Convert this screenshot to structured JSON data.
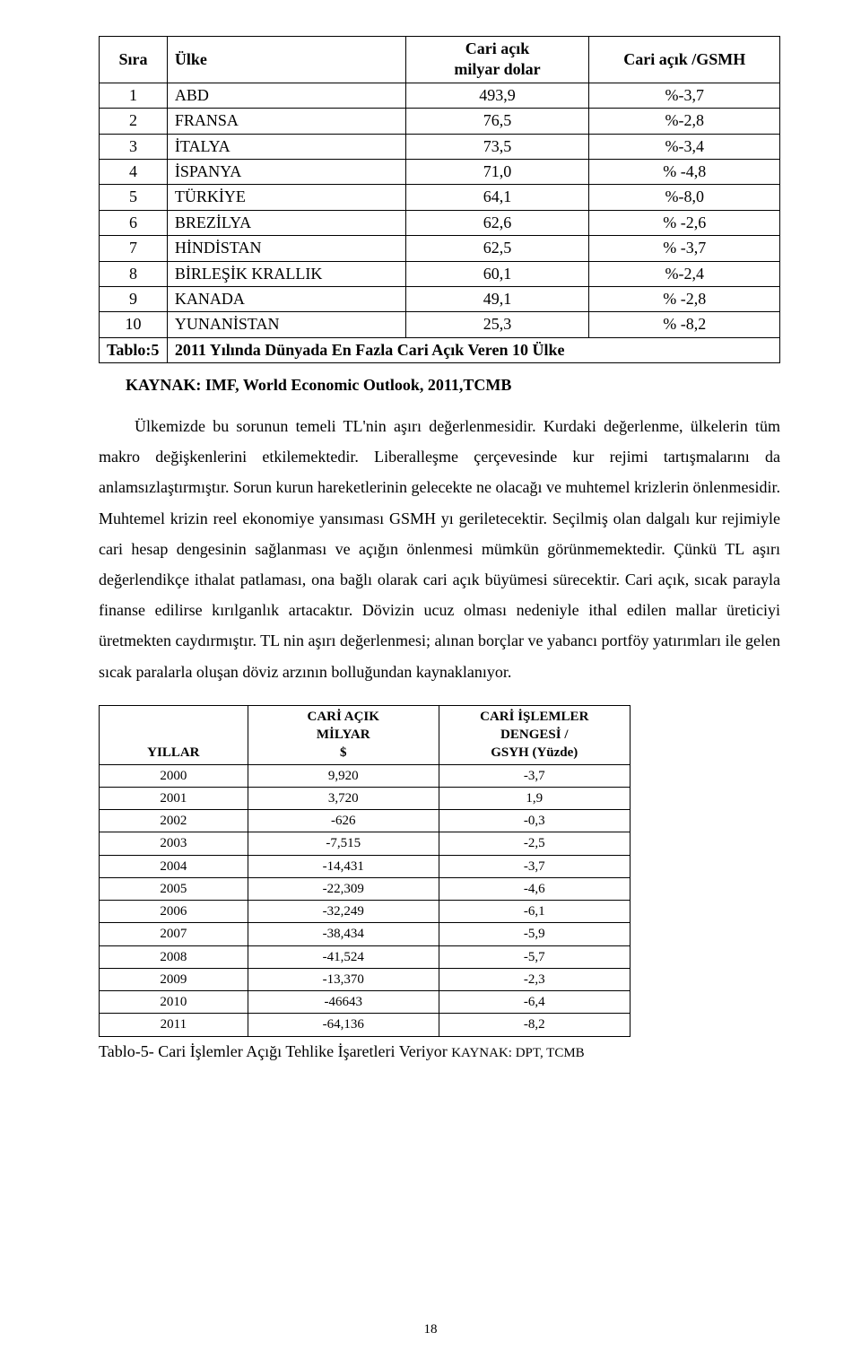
{
  "table1": {
    "headers": {
      "sira": "Sıra",
      "ulke": "Ülke",
      "cari_acik": "Cari açık\nmilyar dolar",
      "cari_gsmh": "Cari açık /GSMH"
    },
    "rows": [
      {
        "sira": "1",
        "ulke": "ABD",
        "cari": "493,9",
        "gsmh": "%-3,7"
      },
      {
        "sira": "2",
        "ulke": "FRANSA",
        "cari": "76,5",
        "gsmh": "%-2,8"
      },
      {
        "sira": "3",
        "ulke": "İTALYA",
        "cari": "73,5",
        "gsmh": "%-3,4"
      },
      {
        "sira": "4",
        "ulke": "İSPANYA",
        "cari": "71,0",
        "gsmh": "% -4,8"
      },
      {
        "sira": "5",
        "ulke": "TÜRKİYE",
        "cari": "64,1",
        "gsmh": "%-8,0"
      },
      {
        "sira": "6",
        "ulke": "BREZİLYA",
        "cari": "62,6",
        "gsmh": "% -2,6"
      },
      {
        "sira": "7",
        "ulke": "HİNDİSTAN",
        "cari": "62,5",
        "gsmh": "% -3,7"
      },
      {
        "sira": "8",
        "ulke": "BİRLEŞİK KRALLIK",
        "cari": "60,1",
        "gsmh": "%-2,4"
      },
      {
        "sira": "9",
        "ulke": "KANADA",
        "cari": "49,1",
        "gsmh": "% -2,8"
      },
      {
        "sira": "10",
        "ulke": "YUNANİSTAN",
        "cari": "25,3",
        "gsmh": "% -8,2"
      }
    ],
    "caption_label": "Tablo:5",
    "caption_text": "2011 Yılında Dünyada En Fazla Cari Açık Veren 10 Ülke"
  },
  "source_line": "KAYNAK: IMF, World Economic Outlook, 2011,TCMB",
  "body_text": "Ülkemizde bu sorunun temeli TL'nin aşırı değerlenmesidir. Kurdaki değerlenme, ülkelerin tüm makro değişkenlerini etkilemektedir. Liberalleşme çerçevesinde kur rejimi tartışmalarını da anlamsızlaştırmıştır.  Sorun kurun hareketlerinin gelecekte ne olacağı ve muhtemel krizlerin önlenmesidir. Muhtemel krizin reel ekonomiye yansıması GSMH yı geriletecektir. Seçilmiş olan dalgalı kur rejimiyle cari hesap dengesinin sağlanması ve açığın önlenmesi mümkün görünmemektedir. Çünkü TL aşırı değerlendikçe ithalat patlaması, ona bağlı olarak cari açık büyümesi sürecektir. Cari açık, sıcak parayla finanse edilirse kırılganlık artacaktır. Dövizin ucuz olması nedeniyle ithal edilen mallar üreticiyi üretmekten caydırmıştır.  TL nin aşırı değerlenmesi; alınan borçlar ve yabancı portföy yatırımları ile gelen sıcak paralarla oluşan döviz arzının bolluğundan kaynaklanıyor.",
  "table2": {
    "headers": {
      "yillar": "YILLAR",
      "cari_acik_l1": "CARİ AÇIK",
      "cari_acik_l2": "MİLYAR",
      "cari_acik_l3": "$",
      "denge_l1": "CARİ İŞLEMLER",
      "denge_l2": "DENGESİ /",
      "denge_l3": "GSYH (Yüzde)"
    },
    "rows": [
      {
        "y": "2000",
        "c": "9,920",
        "b": "-3,7"
      },
      {
        "y": "2001",
        "c": "3,720",
        "b": "1,9"
      },
      {
        "y": "2002",
        "c": "-626",
        "b": "-0,3"
      },
      {
        "y": "2003",
        "c": "-7,515",
        "b": "-2,5"
      },
      {
        "y": "2004",
        "c": "-14,431",
        "b": "-3,7"
      },
      {
        "y": "2005",
        "c": "-22,309",
        "b": "-4,6"
      },
      {
        "y": "2006",
        "c": "-32,249",
        "b": "-6,1"
      },
      {
        "y": "2007",
        "c": "-38,434",
        "b": "-5,9"
      },
      {
        "y": "2008",
        "c": "-41,524",
        "b": "-5,7"
      },
      {
        "y": "2009",
        "c": "-13,370",
        "b": "-2,3"
      },
      {
        "y": "2010",
        "c": "-46643",
        "b": "-6,4"
      },
      {
        "y": "2011",
        "c": "-64,136",
        "b": "-8,2"
      }
    ],
    "caption_main": "Tablo-5- Cari İşlemler Açığı Tehlike İşaretleri Veriyor ",
    "caption_src": "KAYNAK: DPT, TCMB"
  },
  "page_number": "18"
}
